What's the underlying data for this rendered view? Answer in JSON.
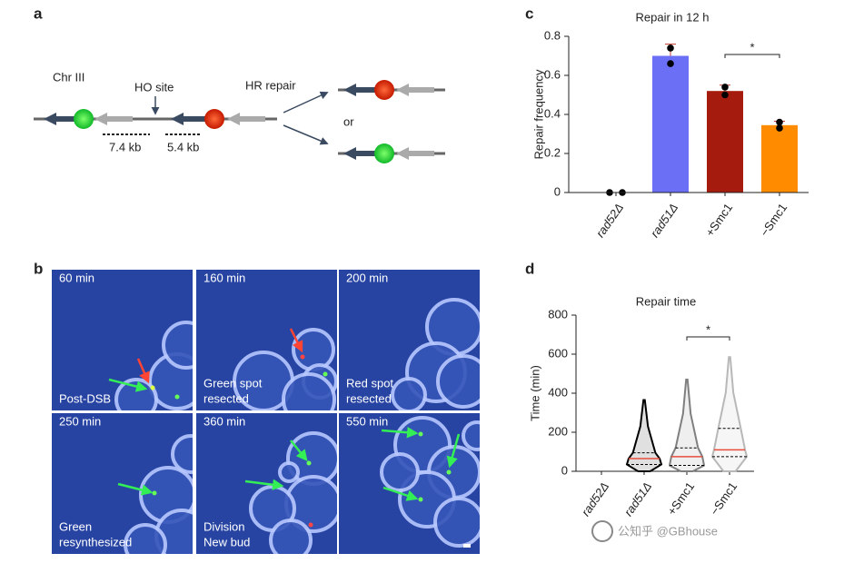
{
  "panel_labels": [
    "a",
    "b",
    "c",
    "d"
  ],
  "schematic": {
    "chromosome": "Chr III",
    "ho_site": "HO site",
    "hr_repair": "HR repair",
    "or": "or",
    "distance_1": "7.4 kb",
    "distance_2": "5.4 kb"
  },
  "timelapse": [
    {
      "time": "60 min",
      "caption": [
        "Post-DSB"
      ]
    },
    {
      "time": "160 min",
      "caption": [
        "Green spot",
        "resected"
      ]
    },
    {
      "time": "200 min",
      "caption": [
        "Red spot",
        "resected"
      ]
    },
    {
      "time": "250 min",
      "caption": [
        "Green",
        "resynthesized"
      ]
    },
    {
      "time": "360 min",
      "caption": [
        "Division",
        "New bud"
      ]
    },
    {
      "time": "550 min",
      "caption": []
    }
  ],
  "watermark": "公知乎 @GBhouse",
  "chart_data": [
    {
      "type": "bar",
      "title": "Repair in 12 h",
      "y_label": "Repair frequency",
      "categories": [
        "rad52Δ",
        "rad51Δ",
        "+Smc1",
        "−Smc1"
      ],
      "values": [
        0,
        0.7,
        0.52,
        0.345
      ],
      "errors": [
        0,
        0.06,
        0.03,
        0.02
      ],
      "points": [
        [
          0,
          0
        ],
        [
          0.74,
          0.66
        ],
        [
          0.54,
          0.5
        ],
        [
          0.36,
          0.33
        ]
      ],
      "colors": [
        "#6b6ff5",
        "#6b6ff5",
        "#a51b0e",
        "#ff8c00"
      ],
      "ylim": [
        0,
        0.8
      ],
      "yticks": [
        0,
        0.2,
        0.4,
        0.6,
        0.8
      ],
      "annotation": "*"
    },
    {
      "type": "violin",
      "title": "Repair time",
      "y_label": "Time (min)",
      "categories": [
        "rad52Δ",
        "rad51Δ",
        "+Smc1",
        "−Smc1"
      ],
      "min": [
        null,
        0,
        0,
        0
      ],
      "q1": [
        null,
        35,
        30,
        75
      ],
      "median": [
        null,
        65,
        75,
        110
      ],
      "q3": [
        null,
        95,
        120,
        220
      ],
      "max": [
        null,
        365,
        470,
        585
      ],
      "colors": [
        "#000000",
        "#000000",
        "#7f7f7f",
        "#b8b8b8"
      ],
      "ylim": [
        0,
        800
      ],
      "yticks": [
        0,
        200,
        400,
        600,
        800
      ],
      "annotation": "*"
    }
  ]
}
